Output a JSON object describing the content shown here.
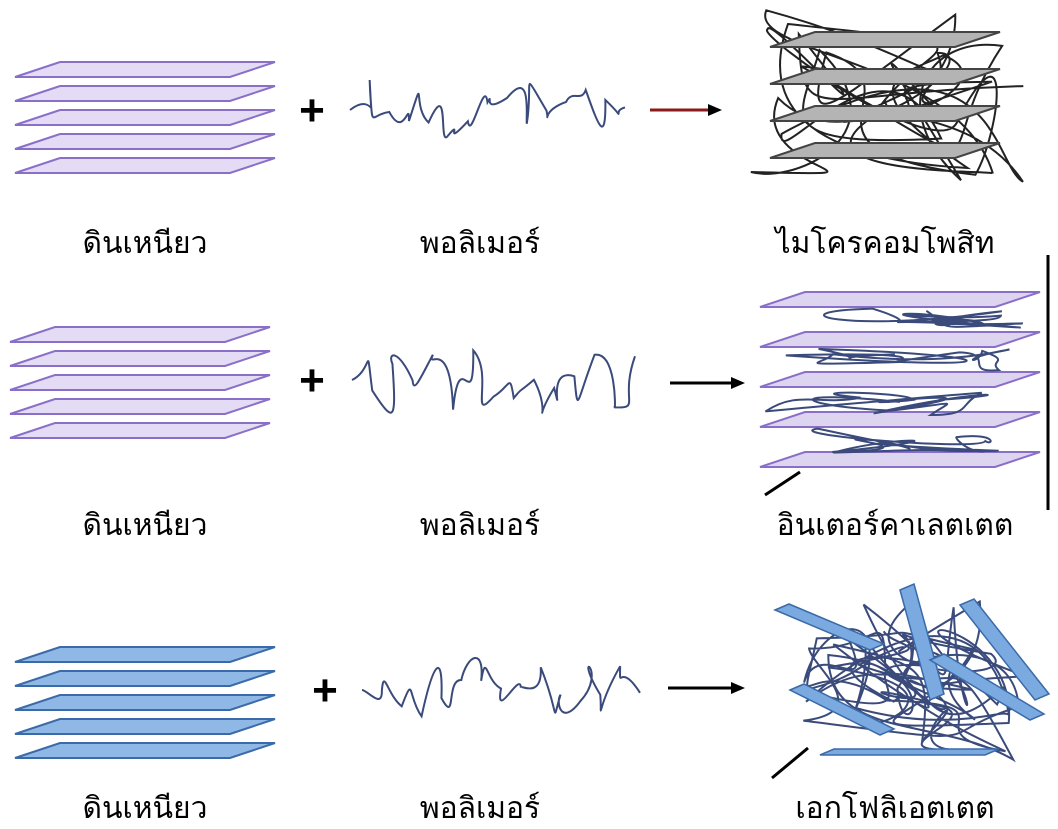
{
  "rows": [
    {
      "clay": "ดินเหนียว",
      "plus": "+",
      "polymer": "พอลิเมอร์",
      "result": "ไมโครคอมโพสิท"
    },
    {
      "clay": "ดินเหนียว",
      "plus": "+",
      "polymer": "พอลิเมอร์",
      "result": "อินเตอร์คาเลตเตต"
    },
    {
      "clay": "ดินเหนียว",
      "plus": "+",
      "polymer": "พอลิเมอร์",
      "result": "เอกโฟลิเอตเตต"
    }
  ]
}
